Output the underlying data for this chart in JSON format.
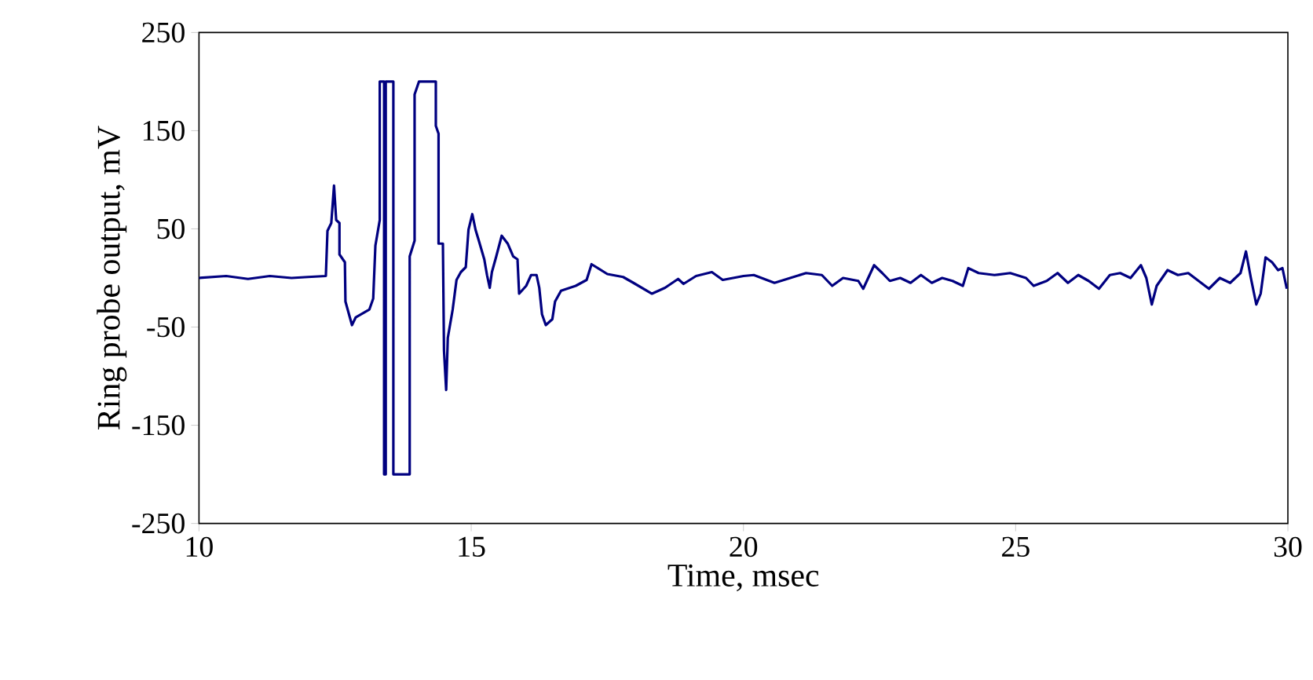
{
  "chart_data": {
    "type": "line",
    "xlabel": "Time, msec",
    "ylabel": "Ring probe output, mV",
    "xlim": [
      10,
      30
    ],
    "ylim": [
      -250,
      250
    ],
    "xticks": [
      10,
      15,
      20,
      25,
      30
    ],
    "yticks": [
      -250,
      -150,
      -50,
      50,
      150,
      250
    ],
    "grid": false,
    "marker": "none",
    "line_style": "solid",
    "series": [
      {
        "color": "#000080",
        "x": [
          10,
          10.5,
          10.9,
          11.3,
          11.7,
          12.0,
          12.33,
          12.36,
          12.43,
          12.48,
          12.52,
          12.58,
          12.58,
          12.68,
          12.69,
          12.81,
          12.88,
          13.13,
          13.2,
          13.24,
          13.32,
          13.32,
          13.4,
          13.4,
          13.43,
          13.43,
          13.57,
          13.57,
          13.87,
          13.87,
          13.96,
          13.96,
          14.04,
          14.35,
          14.35,
          14.4,
          14.4,
          14.48,
          14.5,
          14.54,
          14.57,
          14.66,
          14.73,
          14.81,
          14.9,
          14.95,
          15.02,
          15.08,
          15.14,
          15.24,
          15.29,
          15.34,
          15.38,
          15.46,
          15.56,
          15.67,
          15.77,
          15.85,
          15.88,
          16.01,
          16.1,
          16.2,
          16.25,
          16.3,
          16.37,
          16.49,
          16.54,
          16.65,
          16.92,
          17.12,
          17.21,
          17.5,
          17.79,
          17.98,
          18.32,
          18.56,
          18.8,
          18.9,
          19.13,
          19.42,
          19.62,
          20.0,
          20.19,
          20.57,
          20.86,
          21.15,
          21.44,
          21.63,
          21.83,
          22.11,
          22.2,
          22.4,
          22.55,
          22.69,
          22.88,
          23.07,
          23.26,
          23.46,
          23.65,
          23.84,
          24.03,
          24.13,
          24.32,
          24.61,
          24.9,
          25.19,
          25.33,
          25.57,
          25.77,
          25.96,
          26.15,
          26.34,
          26.53,
          26.73,
          26.92,
          27.11,
          27.3,
          27.4,
          27.5,
          27.59,
          27.79,
          27.98,
          28.17,
          28.36,
          28.55,
          28.75,
          28.94,
          29.13,
          29.23,
          29.32,
          29.42,
          29.5,
          29.59,
          29.71,
          29.82,
          29.9,
          29.98
        ],
        "values": [
          0,
          2,
          -1,
          2,
          0,
          1,
          2,
          48,
          56,
          94,
          59,
          56,
          24,
          16,
          -24,
          -48,
          -40,
          -32,
          -21,
          33,
          59,
          200,
          200,
          -200,
          -200,
          200,
          200,
          -200,
          -200,
          22,
          38,
          187,
          200,
          200,
          155,
          147,
          35,
          35,
          -74,
          -114,
          -61,
          -32,
          -2,
          6,
          11,
          49,
          65,
          49,
          38,
          19,
          3,
          -10,
          6,
          22,
          43,
          35,
          22,
          19,
          -16,
          -8,
          3,
          3,
          -10,
          -37,
          -48,
          -42,
          -24,
          -13,
          -8,
          -2,
          14,
          4,
          1,
          -5,
          -16,
          -10,
          -1,
          -6,
          2,
          6,
          -2,
          2,
          3,
          -5,
          0,
          5,
          3,
          -8,
          0,
          -3,
          -11,
          13,
          5,
          -3,
          0,
          -5,
          3,
          -5,
          0,
          -3,
          -8,
          10,
          5,
          3,
          5,
          0,
          -8,
          -3,
          5,
          -5,
          3,
          -3,
          -11,
          3,
          5,
          0,
          13,
          0,
          -27,
          -8,
          8,
          3,
          5,
          -3,
          -11,
          0,
          -5,
          5,
          27,
          0,
          -27,
          -16,
          21,
          16,
          8,
          10,
          -11
        ]
      }
    ]
  }
}
